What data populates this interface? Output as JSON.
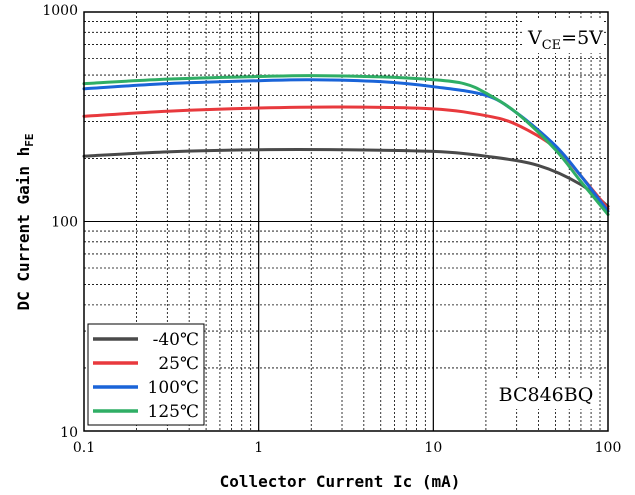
{
  "chart_data": {
    "type": "line",
    "xlabel": "Collector  Current Ic (mA)",
    "ylabel": "DC Current Gain h",
    "ylabel_sub": "FE",
    "x_scale": "log",
    "y_scale": "log",
    "xlim": [
      0.1,
      100
    ],
    "ylim": [
      10,
      1000
    ],
    "x_ticks": [
      {
        "value": 0.1,
        "label": "0.1"
      },
      {
        "value": 1,
        "label": "1"
      },
      {
        "value": 10,
        "label": "10"
      },
      {
        "value": 100,
        "label": "100"
      }
    ],
    "y_ticks": [
      {
        "value": 10,
        "label": "10"
      },
      {
        "value": 100,
        "label": "100"
      },
      {
        "value": 1000,
        "label": "1000"
      }
    ],
    "grid": true,
    "legend_position": "bottom-left",
    "annotations": {
      "condition_main": "V",
      "condition_sub": "CE",
      "condition_value": "=5V",
      "part_number": "BC846BQ"
    },
    "series": [
      {
        "name": "-40℃",
        "color": "#4a4a4a",
        "x": [
          0.1,
          0.3,
          1,
          3,
          10,
          20,
          40,
          70,
          100
        ],
        "y": [
          205,
          215,
          220,
          220,
          216,
          205,
          185,
          150,
          118
        ]
      },
      {
        "name": "25℃",
        "color": "#e8393d",
        "x": [
          0.1,
          0.3,
          1,
          3,
          10,
          20,
          30,
          50,
          70,
          100
        ],
        "y": [
          318,
          336,
          348,
          352,
          345,
          320,
          290,
          225,
          165,
          115
        ]
      },
      {
        "name": "100℃",
        "color": "#1a64d8",
        "x": [
          0.1,
          0.3,
          1,
          2,
          5,
          10,
          20,
          30,
          50,
          70,
          100
        ],
        "y": [
          430,
          455,
          470,
          475,
          465,
          440,
          400,
          330,
          230,
          165,
          112
        ]
      },
      {
        "name": "125℃",
        "color": "#2fae65",
        "x": [
          0.1,
          0.3,
          1,
          2,
          5,
          10,
          15,
          20,
          30,
          50,
          70,
          100
        ],
        "y": [
          455,
          478,
          492,
          497,
          490,
          475,
          455,
          410,
          330,
          220,
          155,
          108
        ]
      }
    ]
  }
}
